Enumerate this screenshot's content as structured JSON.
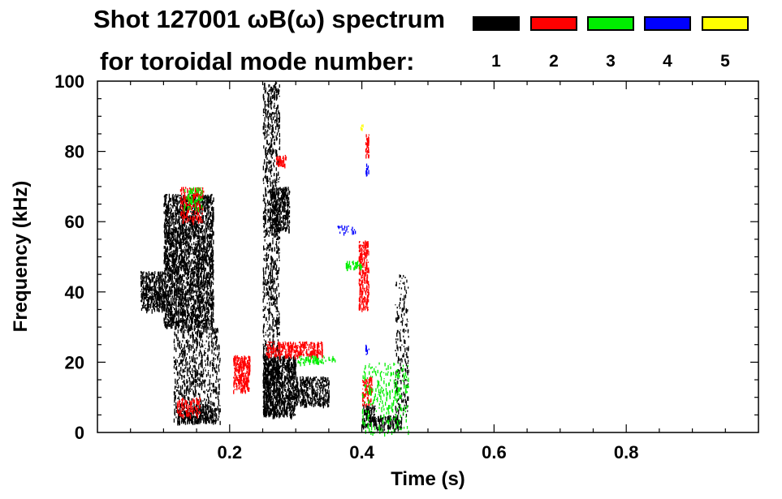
{
  "chart_data": {
    "type": "scatter",
    "title_line1": "Shot 127001 ωB(ω) spectrum",
    "title_line2": "for toroidal mode number:",
    "xlabel": "Time (s)",
    "ylabel": "Frequency (kHz)",
    "xlim": [
      0.0,
      1.0
    ],
    "ylim": [
      0,
      100
    ],
    "x_ticks": [
      0.2,
      0.4,
      0.6,
      0.8
    ],
    "x_tick_labels": [
      "0.2",
      "0.4",
      "0.6",
      "0.8"
    ],
    "y_ticks": [
      0,
      20,
      40,
      60,
      80,
      100
    ],
    "y_tick_labels": [
      "0",
      "20",
      "40",
      "60",
      "80",
      "100"
    ],
    "legend": [
      {
        "label": "1",
        "color": "#000000"
      },
      {
        "label": "2",
        "color": "#ff0000"
      },
      {
        "label": "3",
        "color": "#00ee00"
      },
      {
        "label": "4",
        "color": "#0000ff"
      },
      {
        "label": "5",
        "color": "#ffff00"
      }
    ],
    "series": [
      {
        "name": "1",
        "color": "#000000",
        "regions": [
          {
            "t": [
              0.065,
              0.1
            ],
            "f": [
              35,
              46
            ],
            "density": 0.8
          },
          {
            "t": [
              0.1,
              0.175
            ],
            "f": [
              30,
              68
            ],
            "density": 0.75
          },
          {
            "t": [
              0.115,
              0.185
            ],
            "f": [
              3,
              30
            ],
            "density": 0.3
          },
          {
            "t": [
              0.12,
              0.18
            ],
            "f": [
              3,
              7
            ],
            "density": 0.8
          },
          {
            "t": [
              0.25,
              0.275
            ],
            "f": [
              5,
              100
            ],
            "density": 0.35
          },
          {
            "t": [
              0.26,
              0.29
            ],
            "f": [
              58,
              70
            ],
            "density": 0.8
          },
          {
            "t": [
              0.25,
              0.3
            ],
            "f": [
              5,
              22
            ],
            "density": 0.85
          },
          {
            "t": [
              0.3,
              0.35
            ],
            "f": [
              8,
              16
            ],
            "density": 0.7
          },
          {
            "t": [
              0.4,
              0.42
            ],
            "f": [
              2,
              8
            ],
            "density": 0.85
          },
          {
            "t": [
              0.42,
              0.46
            ],
            "f": [
              1,
              5
            ],
            "density": 0.7
          },
          {
            "t": [
              0.45,
              0.47
            ],
            "f": [
              5,
              45
            ],
            "density": 0.2
          }
        ]
      },
      {
        "name": "2",
        "color": "#ff0000",
        "regions": [
          {
            "t": [
              0.12,
              0.155
            ],
            "f": [
              5,
              10
            ],
            "density": 0.5
          },
          {
            "t": [
              0.125,
              0.16
            ],
            "f": [
              60,
              70
            ],
            "density": 0.4
          },
          {
            "t": [
              0.205,
              0.23
            ],
            "f": [
              12,
              22
            ],
            "density": 0.85
          },
          {
            "t": [
              0.255,
              0.34
            ],
            "f": [
              22,
              26
            ],
            "density": 0.7
          },
          {
            "t": [
              0.27,
              0.285
            ],
            "f": [
              76,
              79
            ],
            "density": 0.8
          },
          {
            "t": [
              0.395,
              0.41
            ],
            "f": [
              35,
              55
            ],
            "density": 0.6
          },
          {
            "t": [
              0.405,
              0.41
            ],
            "f": [
              79,
              85
            ],
            "density": 0.9
          },
          {
            "t": [
              0.4,
              0.415
            ],
            "f": [
              8,
              16
            ],
            "density": 0.6
          }
        ]
      },
      {
        "name": "3",
        "color": "#00ee00",
        "regions": [
          {
            "t": [
              0.375,
              0.4
            ],
            "f": [
              47,
              49
            ],
            "density": 0.8
          },
          {
            "t": [
              0.3,
              0.36
            ],
            "f": [
              20,
              22
            ],
            "density": 0.4
          },
          {
            "t": [
              0.13,
              0.16
            ],
            "f": [
              64,
              70
            ],
            "density": 0.3
          },
          {
            "t": [
              0.4,
              0.47
            ],
            "f": [
              0,
              20
            ],
            "density": 0.15
          }
        ]
      },
      {
        "name": "4",
        "color": "#0000ff",
        "regions": [
          {
            "t": [
              0.405,
              0.41
            ],
            "f": [
              74,
              77
            ],
            "density": 0.6
          },
          {
            "t": [
              0.405,
              0.41
            ],
            "f": [
              22,
              25
            ],
            "density": 0.5
          },
          {
            "t": [
              0.36,
              0.39
            ],
            "f": [
              57,
              59
            ],
            "density": 0.3
          }
        ]
      },
      {
        "name": "5",
        "color": "#ffff00",
        "regions": [
          {
            "t": [
              0.397,
              0.401
            ],
            "f": [
              86,
              88
            ],
            "density": 0.6
          }
        ]
      }
    ]
  }
}
